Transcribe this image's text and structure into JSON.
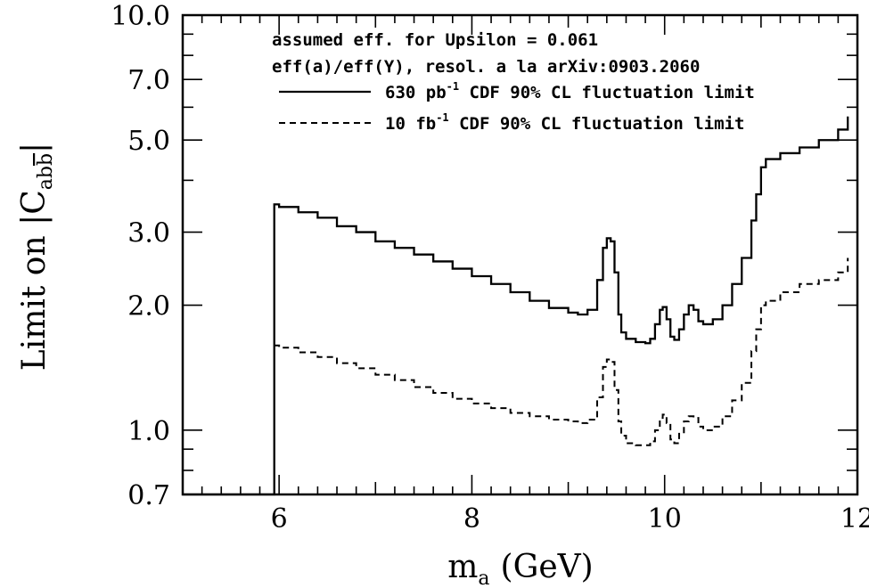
{
  "chart_data": {
    "type": "line",
    "xlabel": "m",
    "xlabel_sub": "a",
    "xlabel_unit": "(GeV)",
    "ylabel_prefix": "Limit on |C",
    "ylabel_sub": "ab",
    "ylabel_sub_bar": "b",
    "ylabel_suffix": "|",
    "xlim": [
      5,
      12
    ],
    "ylim": [
      0.7,
      10.0
    ],
    "yscale": "log",
    "xticks": [
      6,
      8,
      10,
      12
    ],
    "xtick_labels": [
      "6",
      "8",
      "10",
      "12"
    ],
    "yticks": [
      0.7,
      1.0,
      2.0,
      3.0,
      5.0,
      7.0,
      10.0
    ],
    "ytick_labels": [
      "0.7",
      "1.0",
      "2.0",
      "3.0",
      "5.0",
      "7.0",
      "10.0"
    ],
    "annotations": [
      "assumed eff. for Upsilon = 0.061",
      "eff(a)/eff(Υ), resol. a la arXiv:0903.2060"
    ],
    "legend": [
      {
        "pre": "630 pb",
        "sup": "-1",
        "post": " CDF 90% CL fluctuation limit",
        "style": "solid"
      },
      {
        "pre": "10 fb",
        "sup": "-1",
        "post": " CDF 90% CL fluctuation limit",
        "style": "dashed"
      }
    ],
    "series": [
      {
        "style": "solid",
        "x": [
          5.0,
          5.95,
          5.95,
          6.0,
          6.2,
          6.4,
          6.6,
          6.8,
          7.0,
          7.2,
          7.4,
          7.6,
          7.8,
          8.0,
          8.2,
          8.4,
          8.6,
          8.8,
          9.0,
          9.1,
          9.2,
          9.3,
          9.36,
          9.4,
          9.44,
          9.48,
          9.52,
          9.55,
          9.6,
          9.7,
          9.8,
          9.85,
          9.9,
          9.95,
          9.98,
          10.02,
          10.06,
          10.1,
          10.15,
          10.2,
          10.25,
          10.3,
          10.35,
          10.4,
          10.5,
          10.6,
          10.7,
          10.8,
          10.9,
          10.95,
          11.0,
          11.05,
          11.2,
          11.4,
          11.6,
          11.8,
          11.9
        ],
        "y": [
          0.7,
          0.7,
          3.5,
          3.45,
          3.35,
          3.25,
          3.1,
          3.0,
          2.85,
          2.75,
          2.65,
          2.55,
          2.45,
          2.35,
          2.25,
          2.15,
          2.05,
          1.97,
          1.92,
          1.9,
          1.95,
          2.3,
          2.75,
          2.9,
          2.85,
          2.4,
          1.9,
          1.72,
          1.66,
          1.63,
          1.62,
          1.66,
          1.8,
          1.95,
          1.98,
          1.85,
          1.68,
          1.65,
          1.75,
          1.9,
          2.0,
          1.95,
          1.83,
          1.8,
          1.85,
          2.0,
          2.25,
          2.6,
          3.2,
          3.7,
          4.3,
          4.5,
          4.65,
          4.8,
          5.0,
          5.3,
          5.7
        ]
      },
      {
        "style": "dashed",
        "x": [
          5.95,
          6.0,
          6.2,
          6.4,
          6.6,
          6.8,
          7.0,
          7.2,
          7.4,
          7.6,
          7.8,
          8.0,
          8.2,
          8.4,
          8.6,
          8.8,
          9.0,
          9.1,
          9.2,
          9.3,
          9.36,
          9.4,
          9.44,
          9.48,
          9.52,
          9.55,
          9.6,
          9.7,
          9.8,
          9.85,
          9.9,
          9.95,
          9.98,
          10.02,
          10.06,
          10.1,
          10.15,
          10.2,
          10.25,
          10.3,
          10.35,
          10.4,
          10.5,
          10.6,
          10.7,
          10.8,
          10.9,
          10.95,
          11.0,
          11.05,
          11.2,
          11.4,
          11.6,
          11.8,
          11.9
        ],
        "y": [
          1.6,
          1.58,
          1.54,
          1.5,
          1.45,
          1.41,
          1.36,
          1.32,
          1.27,
          1.23,
          1.19,
          1.16,
          1.13,
          1.1,
          1.08,
          1.06,
          1.05,
          1.04,
          1.06,
          1.2,
          1.42,
          1.48,
          1.46,
          1.25,
          1.05,
          0.97,
          0.93,
          0.92,
          0.92,
          0.94,
          1.0,
          1.07,
          1.09,
          1.04,
          0.95,
          0.93,
          0.98,
          1.05,
          1.08,
          1.07,
          1.02,
          1.0,
          1.02,
          1.08,
          1.18,
          1.3,
          1.55,
          1.75,
          2.0,
          2.05,
          2.15,
          2.25,
          2.3,
          2.4,
          2.6
        ]
      }
    ]
  }
}
